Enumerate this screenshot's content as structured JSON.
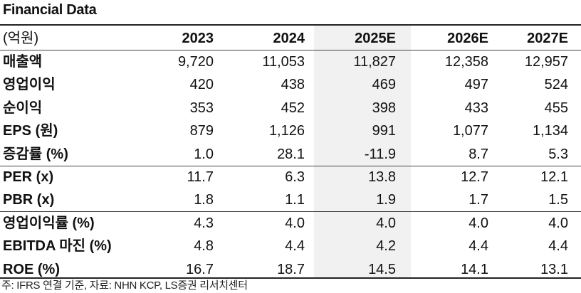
{
  "title": "Financial Data",
  "table": {
    "unit_label": "(억원)",
    "years": [
      "2023",
      "2024",
      "2025E",
      "2026E",
      "2027E"
    ],
    "rows": [
      {
        "label": "매출액",
        "values": [
          "9,720",
          "11,053",
          "11,827",
          "12,358",
          "12,957"
        ]
      },
      {
        "label": "영업이익",
        "values": [
          "420",
          "438",
          "469",
          "497",
          "524"
        ]
      },
      {
        "label": "순이익",
        "values": [
          "353",
          "452",
          "398",
          "433",
          "455"
        ]
      },
      {
        "label": "EPS (원)",
        "values": [
          "879",
          "1,126",
          "991",
          "1,077",
          "1,134"
        ]
      },
      {
        "label": "증감률 (%)",
        "values": [
          "1.0",
          "28.1",
          "-11.9",
          "8.7",
          "5.3"
        ]
      },
      {
        "label": "PER (x)",
        "values": [
          "11.7",
          "6.3",
          "13.8",
          "12.7",
          "12.1"
        ]
      },
      {
        "label": "PBR (x)",
        "values": [
          "1.8",
          "1.1",
          "1.9",
          "1.7",
          "1.5"
        ]
      },
      {
        "label": "영업이익률 (%)",
        "values": [
          "4.3",
          "4.0",
          "4.0",
          "4.0",
          "4.0"
        ]
      },
      {
        "label": "EBITDA 마진 (%)",
        "values": [
          "4.8",
          "4.4",
          "4.2",
          "4.4",
          "4.4"
        ]
      },
      {
        "label": "ROE (%)",
        "values": [
          "16.7",
          "18.7",
          "14.5",
          "14.1",
          "13.1"
        ]
      }
    ]
  },
  "source": "주: IFRS 연결 기준, 자료: NHN KCP, LS증권 리서치센터",
  "colors": {
    "estimate_column_bg": "#f1f1f1",
    "rule": "#222222"
  }
}
